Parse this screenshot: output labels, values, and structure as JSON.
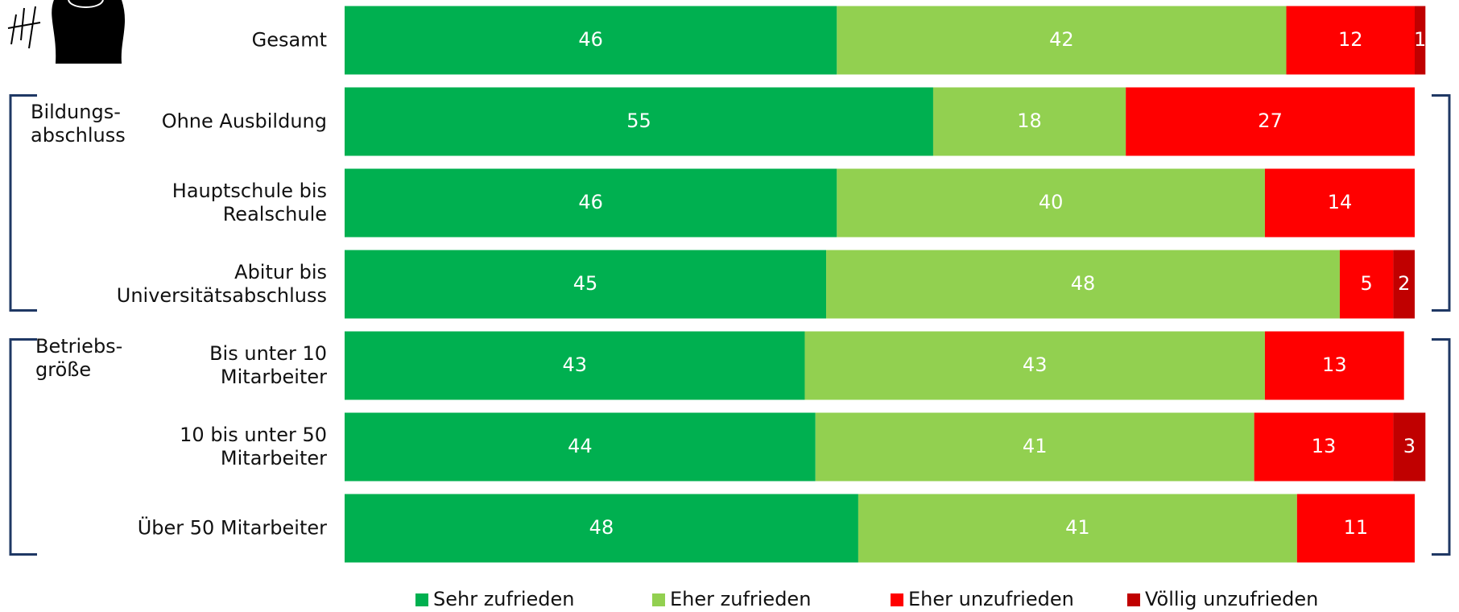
{
  "chart_data": {
    "type": "stacked-bar-horizontal",
    "categories": [
      "Gesamt",
      "Ohne Ausbildung",
      "Hauptschule bis\nRealschule",
      "Abitur bis\nUniversitätsabschluss",
      "Bis unter 10\nMitarbeiter",
      "10 bis unter 50\nMitarbeiter",
      "Über 50 Mitarbeiter"
    ],
    "groups": [
      {
        "label": "Bildungs-\nabschluss",
        "from": 1,
        "to": 3
      },
      {
        "label": "Betriebs-\ngröße",
        "from": 4,
        "to": 6
      }
    ],
    "xlim": [
      0,
      100
    ],
    "series": [
      {
        "name": "Sehr zufrieden",
        "color": "#00b050",
        "values": [
          46,
          55,
          46,
          45,
          43,
          44,
          48
        ]
      },
      {
        "name": "Eher zufrieden",
        "color": "#92d050",
        "values": [
          42,
          18,
          40,
          48,
          43,
          41,
          41
        ]
      },
      {
        "name": "Eher unzufrieden",
        "color": "#ff0000",
        "values": [
          12,
          27,
          14,
          5,
          13,
          13,
          11
        ]
      },
      {
        "name": "Völlig unzufrieden",
        "color": "#c00000",
        "values": [
          1,
          null,
          null,
          2,
          null,
          3,
          null
        ]
      }
    ]
  }
}
